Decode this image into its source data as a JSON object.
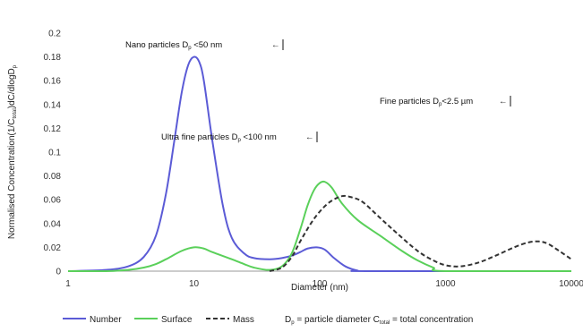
{
  "chart_data": {
    "type": "line",
    "title": "",
    "xlabel": "Diameter (nm)",
    "ylabel": {
      "main": "Normalised Concentration(1/C",
      "sub": "total",
      "tail": ")dC/dlogD",
      "tail_sub": "p"
    },
    "x_scale": "log",
    "xlim": [
      1,
      10000
    ],
    "ylim": [
      0,
      0.2
    ],
    "x_ticks": [
      "1",
      "10",
      "100",
      "1000",
      "10000"
    ],
    "x_tick_values": [
      1,
      10,
      100,
      1000,
      10000
    ],
    "y_ticks": [
      "0",
      "0.02",
      "0.04",
      "0.06",
      "0.08",
      "0.1",
      "0.12",
      "0.14",
      "0.16",
      "0.18",
      "0.2"
    ],
    "y_tick_values": [
      0,
      0.02,
      0.04,
      0.06,
      0.08,
      0.1,
      0.12,
      0.14,
      0.16,
      0.18,
      0.2
    ],
    "grid": false,
    "legend_position": "bottom",
    "series": [
      {
        "name": "Number",
        "color": "#5b5bd6",
        "dash": "solid",
        "points": [
          [
            1,
            0
          ],
          [
            2,
            0.001
          ],
          [
            3,
            0.004
          ],
          [
            4,
            0.012
          ],
          [
            5,
            0.03
          ],
          [
            6,
            0.065
          ],
          [
            7,
            0.11
          ],
          [
            8,
            0.15
          ],
          [
            9,
            0.173
          ],
          [
            10,
            0.18
          ],
          [
            11,
            0.176
          ],
          [
            12,
            0.16
          ],
          [
            14,
            0.11
          ],
          [
            17,
            0.055
          ],
          [
            20,
            0.028
          ],
          [
            25,
            0.015
          ],
          [
            30,
            0.011
          ],
          [
            40,
            0.01
          ],
          [
            50,
            0.011
          ],
          [
            60,
            0.013
          ],
          [
            70,
            0.016
          ],
          [
            80,
            0.019
          ],
          [
            95,
            0.02
          ],
          [
            110,
            0.018
          ],
          [
            130,
            0.011
          ],
          [
            160,
            0.004
          ],
          [
            200,
            0.0005
          ],
          [
            250,
            0
          ],
          [
            10000,
            0
          ]
        ]
      },
      {
        "name": "Surface",
        "color": "#5ad05a",
        "dash": "solid",
        "points": [
          [
            1,
            0
          ],
          [
            2,
            0
          ],
          [
            3,
            0.001
          ],
          [
            4,
            0.003
          ],
          [
            5,
            0.006
          ],
          [
            6,
            0.01
          ],
          [
            8,
            0.017
          ],
          [
            10,
            0.02
          ],
          [
            12,
            0.019
          ],
          [
            14,
            0.016
          ],
          [
            20,
            0.01
          ],
          [
            25,
            0.006
          ],
          [
            30,
            0.003
          ],
          [
            40,
            0.001
          ],
          [
            50,
            0.004
          ],
          [
            60,
            0.015
          ],
          [
            70,
            0.035
          ],
          [
            80,
            0.055
          ],
          [
            90,
            0.068
          ],
          [
            100,
            0.074
          ],
          [
            110,
            0.075
          ],
          [
            125,
            0.07
          ],
          [
            150,
            0.057
          ],
          [
            200,
            0.043
          ],
          [
            300,
            0.03
          ],
          [
            450,
            0.017
          ],
          [
            600,
            0.009
          ],
          [
            800,
            0.003
          ],
          [
            1000,
            0
          ],
          [
            10000,
            0
          ]
        ]
      },
      {
        "name": "Mass",
        "color": "#333333",
        "dash": "dashed",
        "points": [
          [
            40,
            0
          ],
          [
            50,
            0.003
          ],
          [
            60,
            0.012
          ],
          [
            70,
            0.025
          ],
          [
            85,
            0.04
          ],
          [
            100,
            0.05
          ],
          [
            120,
            0.058
          ],
          [
            150,
            0.063
          ],
          [
            180,
            0.062
          ],
          [
            220,
            0.058
          ],
          [
            300,
            0.045
          ],
          [
            400,
            0.033
          ],
          [
            600,
            0.017
          ],
          [
            800,
            0.009
          ],
          [
            1000,
            0.005
          ],
          [
            1300,
            0.004
          ],
          [
            1800,
            0.007
          ],
          [
            2500,
            0.013
          ],
          [
            3500,
            0.02
          ],
          [
            4500,
            0.024
          ],
          [
            5500,
            0.025
          ],
          [
            6500,
            0.023
          ],
          [
            8000,
            0.017
          ],
          [
            10000,
            0.01
          ]
        ]
      }
    ],
    "annotations": [
      {
        "id": "nano",
        "text": "Nano  particles D",
        "sub": "p",
        "tail": " <50 nm",
        "arrow": "←"
      },
      {
        "id": "ultra",
        "text": "Ultra fine particles D",
        "sub": "p",
        "tail": " <100 nm",
        "arrow": "←"
      },
      {
        "id": "fine",
        "text": "Fine particles D",
        "sub": "p",
        "tail": "<2.5 µm",
        "arrow": "←"
      }
    ],
    "legend_note": {
      "part1": "D",
      "part1_sub": "p",
      "part2": " = particle diameter  C",
      "part2_sub": "total",
      "part3": " = total concentration"
    }
  }
}
